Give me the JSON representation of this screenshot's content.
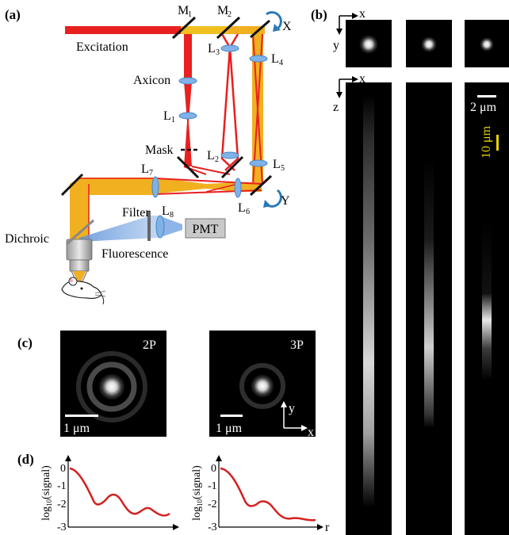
{
  "panels": {
    "a": "(a)",
    "b": "(b)",
    "c": "(c)",
    "d": "(d)"
  },
  "optics": {
    "m1": "M",
    "m1_sub": "1",
    "m2": "M",
    "m2_sub": "2",
    "l1": "L",
    "l1_sub": "1",
    "l2": "L",
    "l2_sub": "2",
    "l3": "L",
    "l3_sub": "3",
    "l4": "L",
    "l4_sub": "4",
    "l5": "L",
    "l5_sub": "5",
    "l6": "L",
    "l6_sub": "6",
    "l7": "L",
    "l7_sub": "7",
    "l8": "L",
    "l8_sub": "8",
    "excitation": "Excitation",
    "axicon": "Axicon",
    "mask": "Mask",
    "filter": "Filter",
    "dichroic": "Dichroic",
    "fluorescence": "Fluorescence",
    "pmt": "PMT",
    "scan_x": "X",
    "scan_y": "Y"
  },
  "images_b": {
    "xy_axis_x": "x",
    "xy_axis_y": "y",
    "xz_axis_x": "x",
    "xz_axis_z": "z",
    "scale_lateral": "2 μm",
    "scale_axial": "10 μm"
  },
  "images_c": {
    "label_2p": "2P",
    "label_3p": "3P",
    "scale_2p": "1 μm",
    "scale_3p": "1 μm",
    "axis_y": "y",
    "axis_x": "x"
  },
  "plots_d": {
    "ylabel": "log",
    "ylabel_sub": "10",
    "ylabel_tail": "(signal)",
    "xlabel": "r",
    "ticks": [
      "0",
      "-1",
      "-2",
      "-3"
    ]
  },
  "colors": {
    "beam_red": "#e8201f",
    "beam_yellow": "#f0b020",
    "fluorescence_blue": "#5b8fd8",
    "lens_blue": "#7fb2e6",
    "curve_red": "#d42020",
    "scale_yellow": "#e8d200"
  }
}
